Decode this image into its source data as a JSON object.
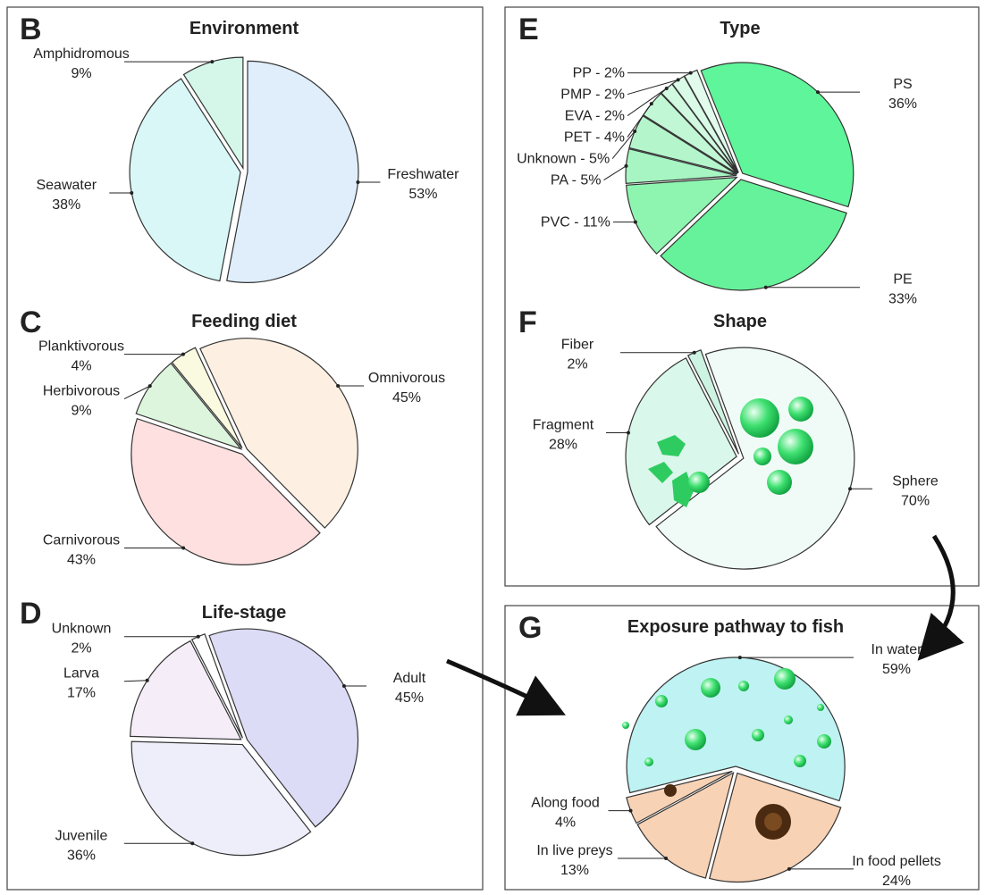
{
  "chart_data": [
    {
      "type": "pie",
      "panel": "B",
      "title": "Environment",
      "categories": [
        "Freshwater",
        "Seawater",
        "Amphidromous"
      ],
      "values": [
        53,
        38,
        9
      ],
      "value_labels": [
        "53%",
        "38%",
        "9%"
      ],
      "colors": [
        "#dfeefa",
        "#d9f7f7",
        "#d4f7ea"
      ]
    },
    {
      "type": "pie",
      "panel": "C",
      "title": "Feeding diet",
      "categories": [
        "Omnivorous",
        "Carnivorous",
        "Herbivorous",
        "Planktivorous"
      ],
      "values": [
        45,
        43,
        9,
        4
      ],
      "value_labels": [
        "45%",
        "43%",
        "9%",
        "4%"
      ],
      "colors": [
        "#fdf0e2",
        "#fde0df",
        "#dcf5dc",
        "#fafae0"
      ]
    },
    {
      "type": "pie",
      "panel": "D",
      "title": "Life-stage",
      "categories": [
        "Adult",
        "Juvenile",
        "Larva",
        "Unknown"
      ],
      "values": [
        45,
        36,
        17,
        2
      ],
      "value_labels": [
        "45%",
        "36%",
        "17%",
        "2%"
      ],
      "colors": [
        "#dcdcf7",
        "#eeeefa",
        "#f5eef9",
        "#ffffff"
      ]
    },
    {
      "type": "pie",
      "panel": "E",
      "title": "Type",
      "separator": " - ",
      "categories": [
        "PS",
        "PE",
        "PVC",
        "PA",
        "Unknown",
        "PET",
        "EVA",
        "PMP",
        "PP"
      ],
      "values": [
        36,
        33,
        11,
        5,
        5,
        4,
        2,
        2,
        2
      ],
      "value_labels": [
        "36%",
        "33%",
        "11%",
        "5%",
        "5%",
        "4%",
        "2%",
        "2%",
        "2%"
      ],
      "colors": [
        "#5ff59a",
        "#66f29a",
        "#8ef5b0",
        "#a6f5c2",
        "#b5f5cc",
        "#c2f7d5",
        "#d0f9e0",
        "#d8fae6",
        "#e2fbec"
      ]
    },
    {
      "type": "pie",
      "panel": "F",
      "title": "Shape",
      "categories": [
        "Sphere",
        "Fragment",
        "Fiber"
      ],
      "values": [
        70,
        28,
        2
      ],
      "value_labels": [
        "70%",
        "28%",
        "2%"
      ],
      "colors": [
        "#f0fbf7",
        "#d9f7ea",
        "#cdf3e2"
      ]
    },
    {
      "type": "pie",
      "panel": "G",
      "title": "Exposure pathway to fish",
      "categories": [
        "In water",
        "In food pellets",
        "In live preys",
        "Along food"
      ],
      "values": [
        59,
        24,
        13,
        4
      ],
      "value_labels": [
        "59%",
        "24%",
        "13%",
        "4%"
      ],
      "colors": [
        "#bff2f2",
        "#f7d2b5",
        "#f7d2b5",
        "#f7d2b5"
      ]
    }
  ]
}
